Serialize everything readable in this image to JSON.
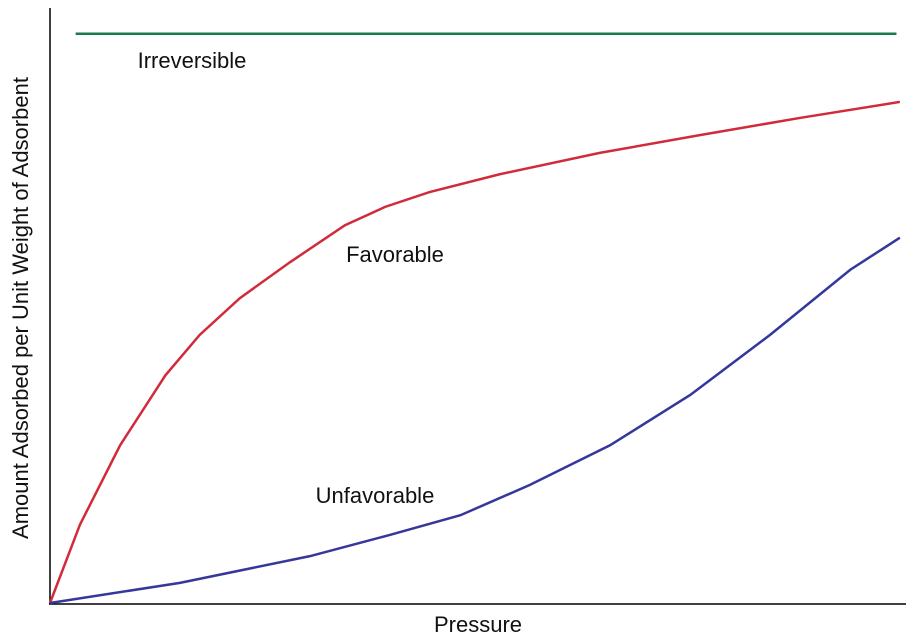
{
  "chart_data": {
    "type": "line",
    "x_label": "Pressure",
    "y_label": "Amount Adsorbed per Unit Weight of Adsorbent",
    "xlim": [
      0,
      100
    ],
    "ylim": [
      0,
      100
    ],
    "series": [
      {
        "name": "Irreversible",
        "color": "#1b7a4a",
        "x": [
          3,
          99
        ],
        "values": [
          96,
          96
        ]
      },
      {
        "name": "Favorable",
        "color": "#d12b3b",
        "x": [
          0,
          3.5,
          8.2,
          13.5,
          17.5,
          22.2,
          28.1,
          34.5,
          39.2,
          44.4,
          52.6,
          64.3,
          76,
          87.7,
          99.4
        ],
        "values": [
          0,
          13.2,
          26.6,
          38.4,
          45.2,
          51.4,
          57.5,
          63.7,
          66.8,
          69.3,
          72.3,
          75.9,
          78.9,
          81.8,
          84.5
        ]
      },
      {
        "name": "Unfavorable",
        "color": "#35379b",
        "x": [
          0,
          15.2,
          30.4,
          39.8,
          48,
          56.1,
          65.5,
          74.9,
          84.2,
          93.6,
          99.4
        ],
        "values": [
          0,
          3.4,
          7.9,
          11.5,
          14.8,
          19.9,
          26.6,
          35.1,
          45.2,
          56.2,
          61.6
        ]
      }
    ]
  }
}
